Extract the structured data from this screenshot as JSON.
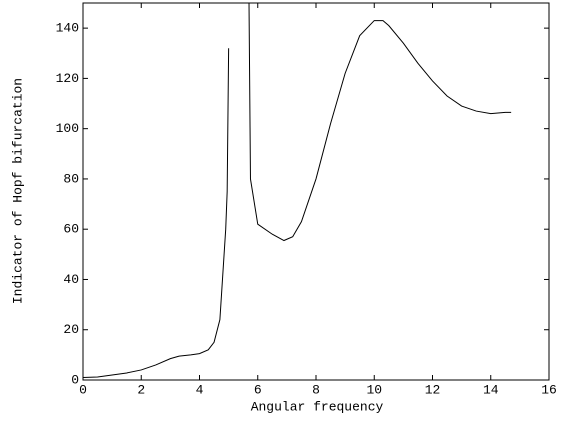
{
  "chart_data": {
    "type": "line",
    "xlabel": "Angular frequency",
    "ylabel": "Indicator of Hopf bifurcation",
    "x": [
      0,
      0.5,
      1,
      1.5,
      2,
      2.5,
      3,
      3.3,
      3.7,
      4,
      4.3,
      4.5,
      4.7,
      4.9,
      4.95,
      5.0,
      5.3,
      5.7,
      5.75,
      6,
      6.5,
      6.9,
      7.2,
      7.5,
      8,
      8.5,
      9,
      9.5,
      10,
      10.3,
      10.5,
      11,
      11.5,
      12,
      12.5,
      13,
      13.5,
      14,
      14.5,
      14.7
    ],
    "values": [
      1,
      1.2,
      2,
      2.8,
      4,
      6,
      8.5,
      9.5,
      10,
      10.5,
      12,
      15,
      24,
      60,
      75,
      132,
      null,
      150,
      80,
      62,
      58,
      55.5,
      57,
      63,
      80,
      102,
      122,
      137,
      143,
      143,
      141,
      134,
      126,
      119,
      113,
      109,
      107,
      106,
      106.5,
      106.5
    ],
    "color": "#000000",
    "xlim": [
      0,
      16
    ],
    "xticks": [
      0,
      2,
      4,
      6,
      8,
      10,
      12,
      14,
      16
    ],
    "ylim": [
      0,
      150
    ],
    "yticks": [
      0,
      20,
      40,
      60,
      80,
      100,
      120,
      140
    ]
  }
}
